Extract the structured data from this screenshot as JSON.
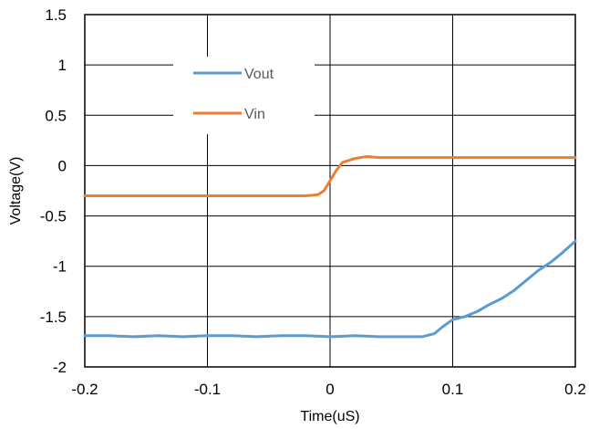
{
  "chart_data": {
    "type": "line",
    "xlabel": "Time(uS)",
    "ylabel": "Voltage(V)",
    "xlim": [
      -0.2,
      0.2
    ],
    "ylim": [
      -2,
      1.5
    ],
    "x_ticks": [
      "-0.2",
      "-0.1",
      "0",
      "0.1",
      "0.2"
    ],
    "y_ticks": [
      "1.5",
      "1",
      "0.5",
      "0",
      "-0.5",
      "-1",
      "-1.5",
      "-2"
    ],
    "grid": true,
    "legend_position": "top-left",
    "series": [
      {
        "name": "Vout",
        "color": "#5B9BD5",
        "points": [
          [
            -0.2,
            -1.69
          ],
          [
            -0.18,
            -1.69
          ],
          [
            -0.16,
            -1.7
          ],
          [
            -0.14,
            -1.69
          ],
          [
            -0.12,
            -1.7
          ],
          [
            -0.1,
            -1.69
          ],
          [
            -0.08,
            -1.69
          ],
          [
            -0.06,
            -1.7
          ],
          [
            -0.04,
            -1.69
          ],
          [
            -0.02,
            -1.69
          ],
          [
            0.0,
            -1.7
          ],
          [
            0.02,
            -1.69
          ],
          [
            0.04,
            -1.7
          ],
          [
            0.06,
            -1.7
          ],
          [
            0.075,
            -1.7
          ],
          [
            0.085,
            -1.67
          ],
          [
            0.092,
            -1.6
          ],
          [
            0.1,
            -1.53
          ],
          [
            0.11,
            -1.5
          ],
          [
            0.12,
            -1.45
          ],
          [
            0.13,
            -1.38
          ],
          [
            0.14,
            -1.32
          ],
          [
            0.15,
            -1.24
          ],
          [
            0.16,
            -1.14
          ],
          [
            0.17,
            -1.04
          ],
          [
            0.18,
            -0.96
          ],
          [
            0.19,
            -0.86
          ],
          [
            0.2,
            -0.75
          ]
        ]
      },
      {
        "name": "Vin",
        "color": "#ED7D31",
        "points": [
          [
            -0.2,
            -0.3
          ],
          [
            -0.16,
            -0.3
          ],
          [
            -0.12,
            -0.3
          ],
          [
            -0.08,
            -0.3
          ],
          [
            -0.04,
            -0.3
          ],
          [
            -0.02,
            -0.3
          ],
          [
            -0.01,
            -0.29
          ],
          [
            -0.005,
            -0.25
          ],
          [
            0.0,
            -0.15
          ],
          [
            0.005,
            -0.05
          ],
          [
            0.01,
            0.03
          ],
          [
            0.02,
            0.07
          ],
          [
            0.03,
            0.09
          ],
          [
            0.04,
            0.08
          ],
          [
            0.06,
            0.08
          ],
          [
            0.1,
            0.08
          ],
          [
            0.14,
            0.08
          ],
          [
            0.18,
            0.08
          ],
          [
            0.2,
            0.08
          ]
        ]
      }
    ]
  }
}
